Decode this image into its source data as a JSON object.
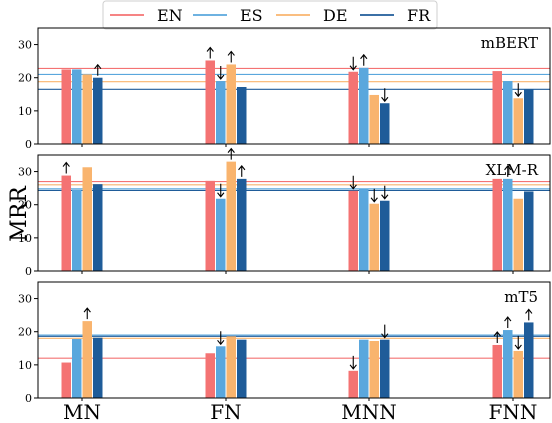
{
  "chart_data": {
    "type": "bar",
    "ylabel": "MRR",
    "categories": [
      "MN",
      "FN",
      "MNN",
      "FNN"
    ],
    "legend": {
      "placement": "top",
      "entries": [
        {
          "name": "EN",
          "color": "#f47373"
        },
        {
          "name": "ES",
          "color": "#5aa7dd"
        },
        {
          "name": "DE",
          "color": "#f9b46e"
        },
        {
          "name": "FR",
          "color": "#1f5c99"
        }
      ]
    },
    "yticks": [
      0,
      10,
      20,
      30
    ],
    "ylim": [
      0,
      35
    ],
    "grid": false,
    "panels": [
      {
        "title": "mBERT",
        "baselines": {
          "EN": 22.8,
          "ES": 21.0,
          "DE": 18.8,
          "FR": 16.5
        },
        "series": [
          {
            "name": "EN",
            "values": [
              22.5,
              25.2,
              21.8,
              22.0
            ],
            "arrows": [
              "",
              "up",
              "down",
              ""
            ]
          },
          {
            "name": "ES",
            "values": [
              22.5,
              19.0,
              23.0,
              19.0
            ],
            "arrows": [
              "",
              "down",
              "up",
              ""
            ]
          },
          {
            "name": "DE",
            "values": [
              21.0,
              24.0,
              14.8,
              13.8
            ],
            "arrows": [
              "",
              "up",
              "",
              "down"
            ]
          },
          {
            "name": "FR",
            "values": [
              20.0,
              17.2,
              12.3,
              16.5
            ],
            "arrows": [
              "up",
              "",
              "down",
              ""
            ]
          }
        ]
      },
      {
        "title": "XLM-R",
        "baselines": {
          "EN": 27.0,
          "ES": 24.8,
          "DE": 26.0,
          "FR": 24.3
        },
        "series": [
          {
            "name": "EN",
            "values": [
              28.8,
              27.2,
              24.2,
              27.8
            ],
            "arrows": [
              "up",
              "",
              "down",
              ""
            ]
          },
          {
            "name": "ES",
            "values": [
              24.5,
              21.8,
              24.8,
              27.8
            ],
            "arrows": [
              "",
              "down",
              "",
              "up"
            ]
          },
          {
            "name": "DE",
            "values": [
              31.3,
              33.0,
              20.3,
              21.8
            ],
            "arrows": [
              "",
              "up",
              "down",
              ""
            ]
          },
          {
            "name": "FR",
            "values": [
              26.2,
              27.8,
              21.2,
              24.0
            ],
            "arrows": [
              "",
              "up",
              "down",
              ""
            ]
          }
        ]
      },
      {
        "title": "mT5",
        "baselines": {
          "EN": 12.0,
          "ES": 19.0,
          "DE": 18.0,
          "FR": 18.6
        },
        "series": [
          {
            "name": "EN",
            "values": [
              10.7,
              13.5,
              8.2,
              16.0
            ],
            "arrows": [
              "",
              "",
              "down",
              "up"
            ]
          },
          {
            "name": "ES",
            "values": [
              17.8,
              15.6,
              17.6,
              20.5
            ],
            "arrows": [
              "",
              "down",
              "",
              "up"
            ]
          },
          {
            "name": "DE",
            "values": [
              23.2,
              18.6,
              17.2,
              14.2
            ],
            "arrows": [
              "up",
              "",
              "",
              "down"
            ]
          },
          {
            "name": "FR",
            "values": [
              18.2,
              17.6,
              17.6,
              22.8
            ],
            "arrows": [
              "",
              "",
              "down",
              "up"
            ]
          }
        ]
      }
    ]
  }
}
